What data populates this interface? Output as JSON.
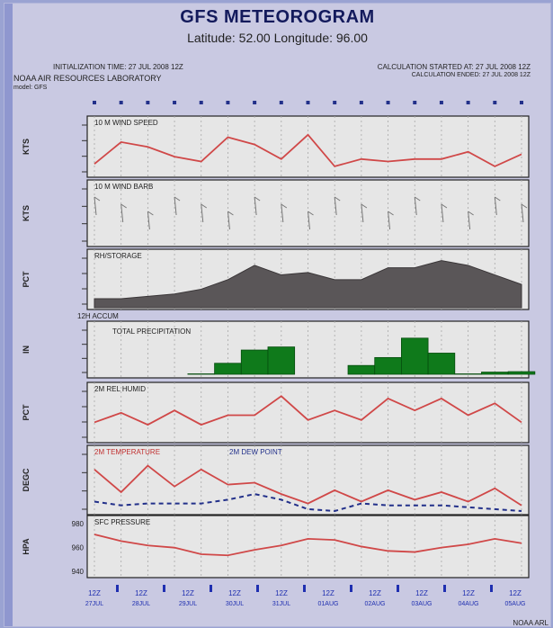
{
  "header": {
    "title": "GFS METEOROGRAM",
    "subtitle": "Latitude: 52.00 Longitude: 96.00",
    "init_time": "INITIALIZATION TIME: 27 JUL 2008 12Z",
    "lab": "NOAA AIR RESOURCES LABORATORY",
    "model_name": "model: GFS",
    "calc_start": "CALCULATION STARTED AT: 27 JUL 2008 12Z",
    "calc_end": "CALCULATION ENDED: 27 JUL 2008 12Z",
    "footer": "NOAA ARL"
  },
  "chart_data": [
    {
      "type": "line",
      "title": "10 M WIND SPEED",
      "ylabel": "KTS",
      "ylim": [
        0,
        10
      ],
      "color": "#d04848",
      "x": [
        0,
        1,
        2,
        3,
        4,
        5,
        6,
        7,
        8,
        9,
        10,
        11,
        12,
        13,
        14,
        15,
        16
      ],
      "values": [
        2,
        6.5,
        5.5,
        3.5,
        2.5,
        7.5,
        6,
        3,
        8,
        1.5,
        3,
        2.5,
        3,
        3,
        4.5,
        1.5,
        4
      ]
    },
    {
      "type": "line",
      "title": "10 M WIND BARB",
      "ylabel": "KTS"
    },
    {
      "type": "area",
      "title": "RH/STORAGE",
      "ylabel": "PCT",
      "ylim": [
        0,
        100
      ],
      "color": "#5a5658",
      "x": [
        0,
        1,
        2,
        3,
        4,
        5,
        6,
        7,
        8,
        9,
        10,
        11,
        12,
        13,
        14,
        15,
        16
      ],
      "values": [
        15,
        15,
        20,
        25,
        35,
        55,
        85,
        65,
        70,
        55,
        55,
        80,
        80,
        95,
        85,
        65,
        45
      ]
    },
    {
      "type": "bar",
      "title": "TOTAL PRECIPITATION",
      "ylabel": "IN",
      "label_left": "12H ACCUM",
      "ylim": [
        0,
        1
      ],
      "color": "#0f7a1b",
      "x": [
        0,
        1,
        2,
        3,
        4,
        5,
        6,
        7,
        8,
        9,
        10,
        11,
        12,
        13,
        14,
        15,
        16
      ],
      "values": [
        0,
        0,
        0,
        0,
        0.01,
        0.25,
        0.55,
        0.62,
        0,
        0,
        0.2,
        0.38,
        0.82,
        0.48,
        0.01,
        0.05,
        0.06
      ]
    },
    {
      "type": "line",
      "title": "2M REL HUMID",
      "ylabel": "PCT",
      "ylim": [
        0,
        100
      ],
      "color": "#d04848",
      "x": [
        0,
        1,
        2,
        3,
        4,
        5,
        6,
        7,
        8,
        9,
        10,
        11,
        12,
        13,
        14,
        15,
        16
      ],
      "values": [
        35,
        55,
        30,
        60,
        30,
        50,
        50,
        90,
        40,
        60,
        40,
        85,
        60,
        85,
        50,
        75,
        35
      ]
    },
    {
      "type": "line",
      "title": "2M TEMPERATURE",
      "ylabel": "DEGC",
      "ylim": [
        0,
        30
      ],
      "series": [
        {
          "name": "2M TEMPERATURE",
          "color": "#d04848",
          "dash": false,
          "values": [
            22,
            10,
            24,
            13,
            22,
            14,
            15,
            9,
            4,
            11,
            5,
            11,
            6,
            10,
            5,
            12,
            3
          ]
        },
        {
          "name": "2M DEW POINT",
          "color": "#22308a",
          "dash": true,
          "values": [
            5,
            3,
            4,
            4,
            4,
            6,
            9,
            6,
            1,
            0,
            4,
            3,
            3,
            3,
            2,
            1,
            0
          ]
        }
      ]
    },
    {
      "type": "line",
      "title": "SFC PRESSURE",
      "ylabel": "HPA",
      "ytick_labels": [
        "980",
        "960",
        "940"
      ],
      "ylim": [
        940,
        985
      ],
      "color": "#d04848",
      "x": [
        0,
        1,
        2,
        3,
        4,
        5,
        6,
        7,
        8,
        9,
        10,
        11,
        12,
        13,
        14,
        15,
        16
      ],
      "values": [
        976,
        970,
        966,
        964,
        958,
        957,
        962,
        966,
        972,
        971,
        965,
        961,
        960,
        964,
        967,
        972,
        968
      ]
    }
  ],
  "time_axis": {
    "labels": [
      "12Z 27JUL",
      "12Z 28JUL",
      "12Z 29JUL",
      "12Z 30JUL",
      "12Z 31JUL",
      "12Z 01AUG",
      "12Z 02AUG",
      "12Z 03AUG",
      "12Z 04AUG",
      "12Z 05AUG"
    ]
  }
}
